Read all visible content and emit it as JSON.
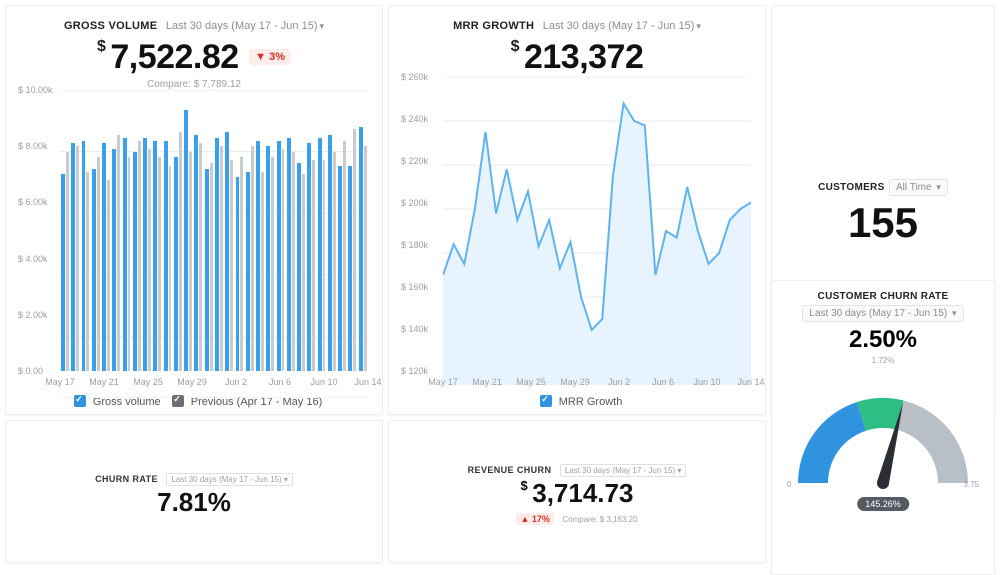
{
  "colors": {
    "cur_bar": "#39a0ed",
    "prev_bar": "#c8ccd0",
    "line_stroke": "#5db4f0",
    "line_fill": "#e8f4fd",
    "grid": "#e8e8e8",
    "axis_text": "#9aa0a6",
    "gauge_blue": "#2f93e0",
    "gauge_green": "#2ebd85",
    "gauge_gray": "#b8bfc6",
    "needle": "#2b2f33",
    "checkbox_blue": "#2f93e0",
    "checkbox_gray": "#6b7075"
  },
  "gross": {
    "title": "GROSS VOLUME",
    "range": "Last 30 days (May 17 - Jun 15)",
    "value": "7,522.82",
    "change_pct": "3%",
    "change_dir": "down",
    "compare_label": "Compare:",
    "compare_value": "$ 7,789.12",
    "y_ticks": [
      "$ 0.00",
      "$ 2.00k",
      "$ 4.00k",
      "$ 6.00k",
      "$ 8.00k",
      "$ 10.00k"
    ],
    "y_max": 10000,
    "x_ticks": [
      "May 17",
      "May 21",
      "May 25",
      "May 29",
      "Jun 2",
      "Jun 6",
      "Jun 10",
      "Jun 14"
    ],
    "legend_cur": "Gross volume",
    "legend_prev": "Previous (Apr 17 - May 16)",
    "cur": [
      7000,
      8100,
      8200,
      7200,
      8100,
      7900,
      8300,
      7800,
      8300,
      8200,
      8200,
      7600,
      9300,
      8400,
      7200,
      8300,
      8500,
      6900,
      7100,
      8200,
      8000,
      8200,
      8300,
      7400,
      8100,
      8300,
      8400,
      7300,
      7300,
      8700
    ],
    "prev": [
      7800,
      8000,
      7100,
      7600,
      6800,
      8400,
      7600,
      8200,
      7900,
      7600,
      7300,
      8500,
      7800,
      8100,
      7400,
      8000,
      7500,
      7600,
      8000,
      7100,
      7600,
      7900,
      7800,
      7000,
      7500,
      7500,
      7800,
      8200,
      8600,
      8000
    ]
  },
  "mrr": {
    "title": "MRR GROWTH",
    "range": "Last 30 days (May 17 - Jun 15)",
    "value": "213,372",
    "y_ticks": [
      "$ 120k",
      "$ 140k",
      "$ 160k",
      "$ 180k",
      "$ 200k",
      "$ 220k",
      "$ 240k",
      "$ 260k"
    ],
    "y_min": 120000,
    "y_max": 260000,
    "x_ticks": [
      "May 17",
      "May 21",
      "May 25",
      "May 29",
      "Jun 2",
      "Jun 6",
      "Jun 10",
      "Jun 14"
    ],
    "legend": "MRR Growth",
    "values": [
      170000,
      184000,
      175000,
      200000,
      235000,
      198000,
      218000,
      195000,
      208000,
      183000,
      195000,
      173000,
      185000,
      160000,
      145000,
      150000,
      215000,
      248000,
      240000,
      238000,
      170000,
      190000,
      187000,
      210000,
      190000,
      175000,
      180000,
      195000,
      200000,
      203000
    ]
  },
  "customers": {
    "title": "CUSTOMERS",
    "range": "All Time",
    "value": "155"
  },
  "churn_rate": {
    "title": "CHURN RATE",
    "range": "Last 30 days (May 17 - Jun 15)",
    "value": "7.81%"
  },
  "revenue_churn": {
    "title": "REVENUE CHURN",
    "range": "Last 30 days (May 17 - Jun 15)",
    "value": "3,714.73",
    "change_pct": "17%",
    "change_dir": "up",
    "compare_label": "Compare:",
    "compare_value": "$ 3,163.20"
  },
  "cust_churn": {
    "title": "CUSTOMER CHURN RATE",
    "range": "Last 30 days (May 17 - Jun 15)",
    "value": "2.50%",
    "scale_min": "0",
    "scale_mid": "1.72%",
    "scale_max": "3.75",
    "needle_label": "145.26%",
    "blue_end_deg": 72,
    "green_end_deg": 104,
    "needle_deg": 104
  }
}
